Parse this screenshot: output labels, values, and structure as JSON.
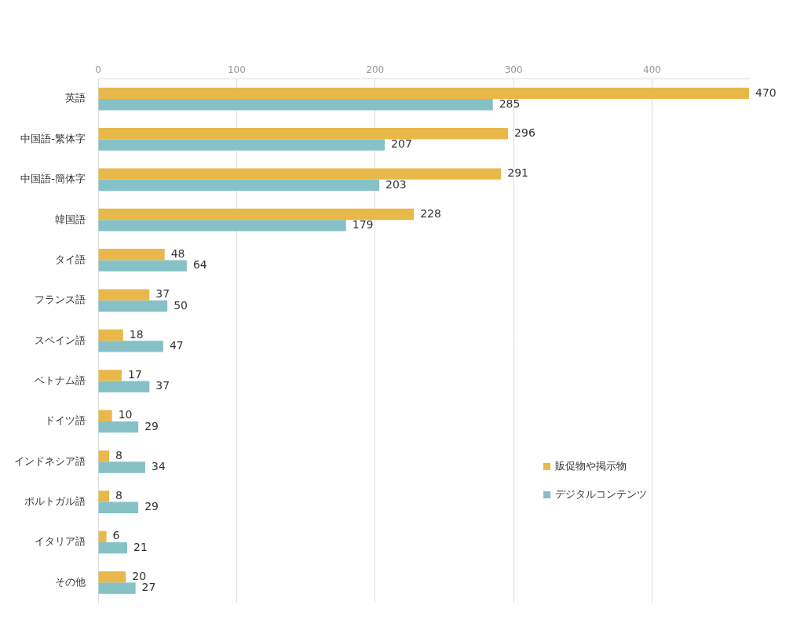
{
  "chart_data": {
    "type": "bar",
    "orientation": "horizontal",
    "categories": [
      "英語",
      "中国語-繁体字",
      "中国語-簡体字",
      "韓国語",
      "タイ語",
      "フランス語",
      "スペイン語",
      "ベトナム語",
      "ドイツ語",
      "インドネシア語",
      "ポルトガル語",
      "イタリア語",
      "その他"
    ],
    "series": [
      {
        "name": "販促物や掲示物",
        "color": "#e8b84a",
        "values": [
          470,
          296,
          291,
          228,
          48,
          37,
          18,
          17,
          10,
          8,
          8,
          6,
          20
        ]
      },
      {
        "name": "デジタルコンテンツ",
        "color": "#85c1c6",
        "values": [
          285,
          207,
          203,
          179,
          64,
          50,
          47,
          37,
          29,
          34,
          29,
          21,
          27
        ]
      }
    ],
    "xlim": [
      0,
      470
    ],
    "xticks": [
      0,
      100,
      200,
      300,
      400
    ],
    "grid": true,
    "legend": "lower right",
    "data_labels": true
  }
}
